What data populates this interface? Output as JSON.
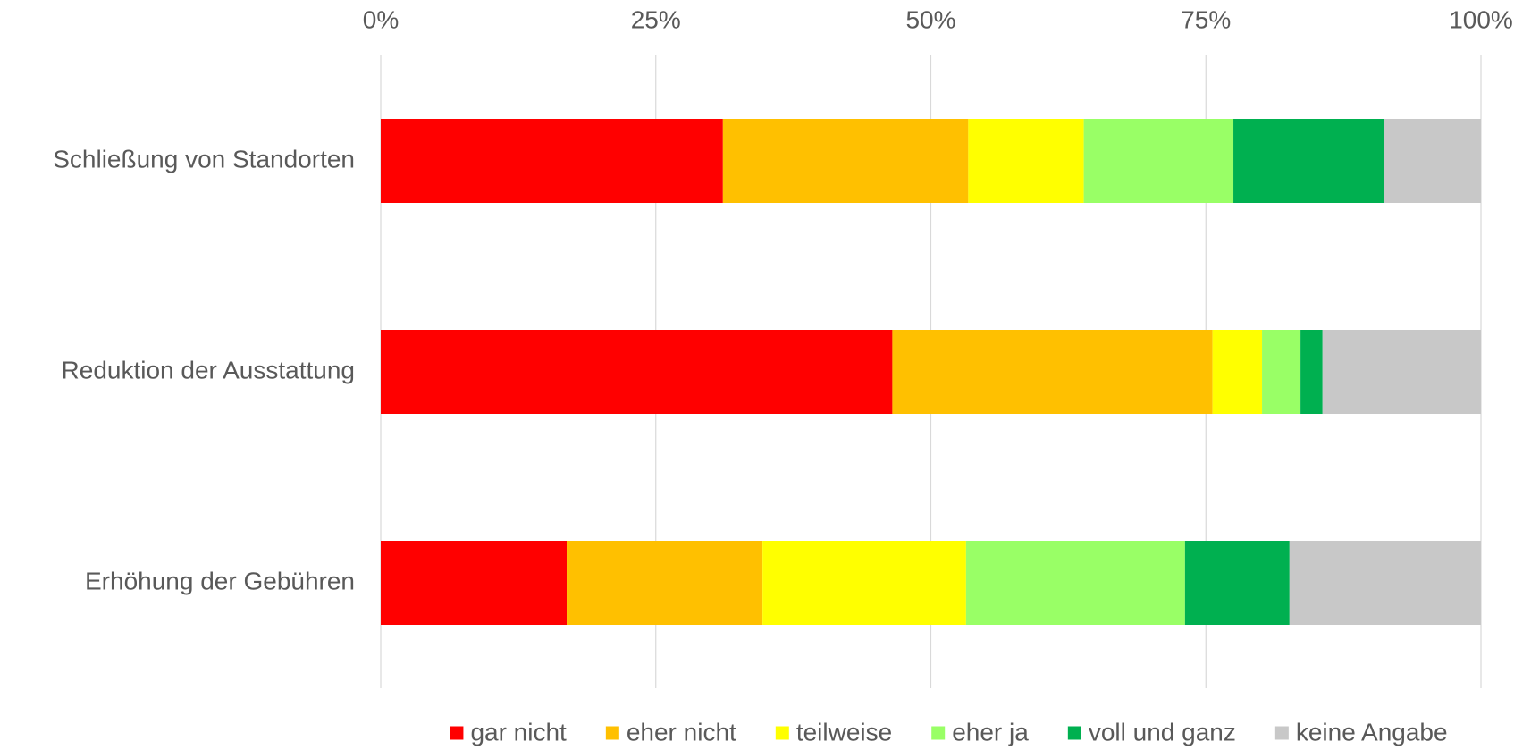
{
  "chart_data": {
    "type": "stacked_barh",
    "categories": [
      "Schließung von Standorten",
      "Reduktion der Ausstattung",
      "Erhöhung der Gebühren"
    ],
    "series": [
      {
        "name": "gar nicht",
        "color": "#ff0000",
        "values": [
          31.1,
          46.5,
          16.9
        ]
      },
      {
        "name": "eher nicht",
        "color": "#ffc000",
        "values": [
          22.3,
          29.1,
          17.8
        ]
      },
      {
        "name": "teilweise",
        "color": "#ffff00",
        "values": [
          10.5,
          4.5,
          18.5
        ]
      },
      {
        "name": "eher ja",
        "color": "#99ff66",
        "values": [
          13.6,
          3.5,
          19.9
        ]
      },
      {
        "name": "voll und ganz",
        "color": "#00b050",
        "values": [
          13.7,
          2.0,
          9.5
        ]
      },
      {
        "name": "keine Angabe",
        "color": "#c8c8c8",
        "values": [
          8.8,
          14.4,
          17.4
        ]
      }
    ],
    "xlim": [
      0,
      100
    ],
    "xticks": [
      {
        "value": 0,
        "label": "0%"
      },
      {
        "value": 25,
        "label": "25%"
      },
      {
        "value": 50,
        "label": "50%"
      },
      {
        "value": 75,
        "label": "75%"
      },
      {
        "value": 100,
        "label": "100%"
      }
    ],
    "grid": true,
    "legend": "bottom"
  }
}
